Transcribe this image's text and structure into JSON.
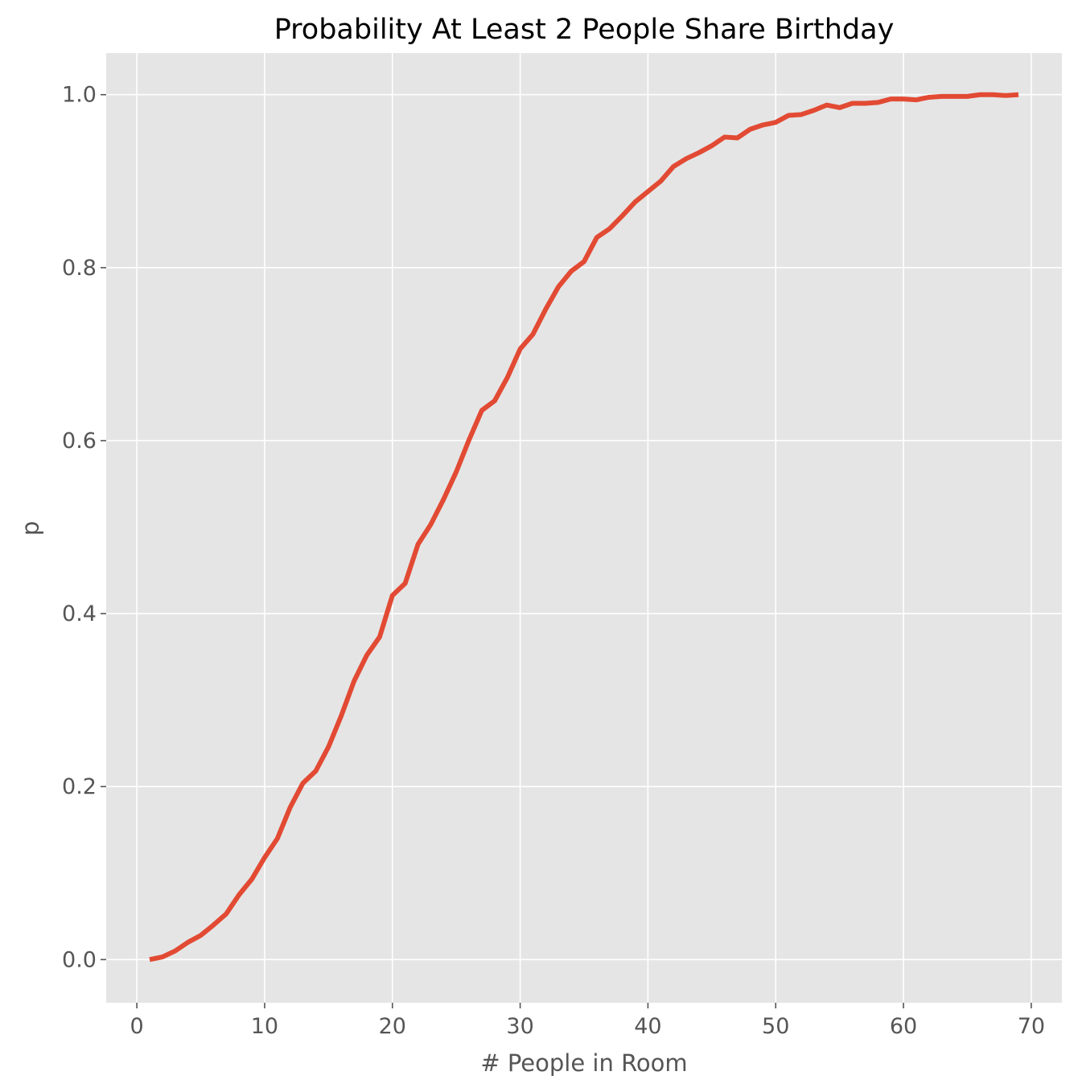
{
  "chart_data": {
    "type": "line",
    "title": "Probability At Least 2 People Share Birthday",
    "xlabel": "# People in Room",
    "ylabel": "p",
    "xlim": [
      -2.4,
      72.4
    ],
    "ylim": [
      -0.0499,
      1.0481
    ],
    "xticks": [
      0,
      10,
      20,
      30,
      40,
      50,
      60,
      70
    ],
    "xtick_labels": [
      "0",
      "10",
      "20",
      "30",
      "40",
      "50",
      "60",
      "70"
    ],
    "yticks": [
      0.0,
      0.2,
      0.4,
      0.6,
      0.8,
      1.0
    ],
    "ytick_labels": [
      "0.0",
      "0.2",
      "0.4",
      "0.6",
      "0.8",
      "1.0"
    ],
    "grid": true,
    "legend": "none",
    "colors": {
      "line": "#E24A33",
      "background": "#E5E5E5",
      "grid": "#FFFFFF"
    },
    "series": [
      {
        "x": [
          1,
          2,
          3,
          4,
          5,
          6,
          7,
          8,
          9,
          10,
          11,
          12,
          13,
          14,
          15,
          16,
          17,
          18,
          19,
          20,
          21,
          22,
          23,
          24,
          25,
          26,
          27,
          28,
          29,
          30,
          31,
          32,
          33,
          34,
          35,
          36,
          37,
          38,
          39,
          40,
          41,
          42,
          43,
          44,
          45,
          46,
          47,
          48,
          49,
          50,
          51,
          52,
          53,
          54,
          55,
          56,
          57,
          58,
          59,
          60,
          61,
          62,
          63,
          64,
          65,
          66,
          67,
          68,
          69
        ],
        "y": [
          0.0,
          0.003,
          0.01,
          0.02,
          0.028,
          0.04,
          0.053,
          0.075,
          0.093,
          0.118,
          0.14,
          0.176,
          0.204,
          0.218,
          0.246,
          0.282,
          0.322,
          0.352,
          0.373,
          0.421,
          0.435,
          0.48,
          0.503,
          0.532,
          0.564,
          0.601,
          0.635,
          0.646,
          0.673,
          0.706,
          0.723,
          0.752,
          0.778,
          0.796,
          0.807,
          0.835,
          0.845,
          0.86,
          0.876,
          0.888,
          0.9,
          0.917,
          0.926,
          0.933,
          0.941,
          0.951,
          0.95,
          0.96,
          0.965,
          0.968,
          0.976,
          0.977,
          0.982,
          0.988,
          0.985,
          0.99,
          0.99,
          0.991,
          0.995,
          0.995,
          0.994,
          0.997,
          0.998,
          0.998,
          0.998,
          1.0,
          1.0,
          0.999,
          1.0
        ]
      }
    ]
  }
}
